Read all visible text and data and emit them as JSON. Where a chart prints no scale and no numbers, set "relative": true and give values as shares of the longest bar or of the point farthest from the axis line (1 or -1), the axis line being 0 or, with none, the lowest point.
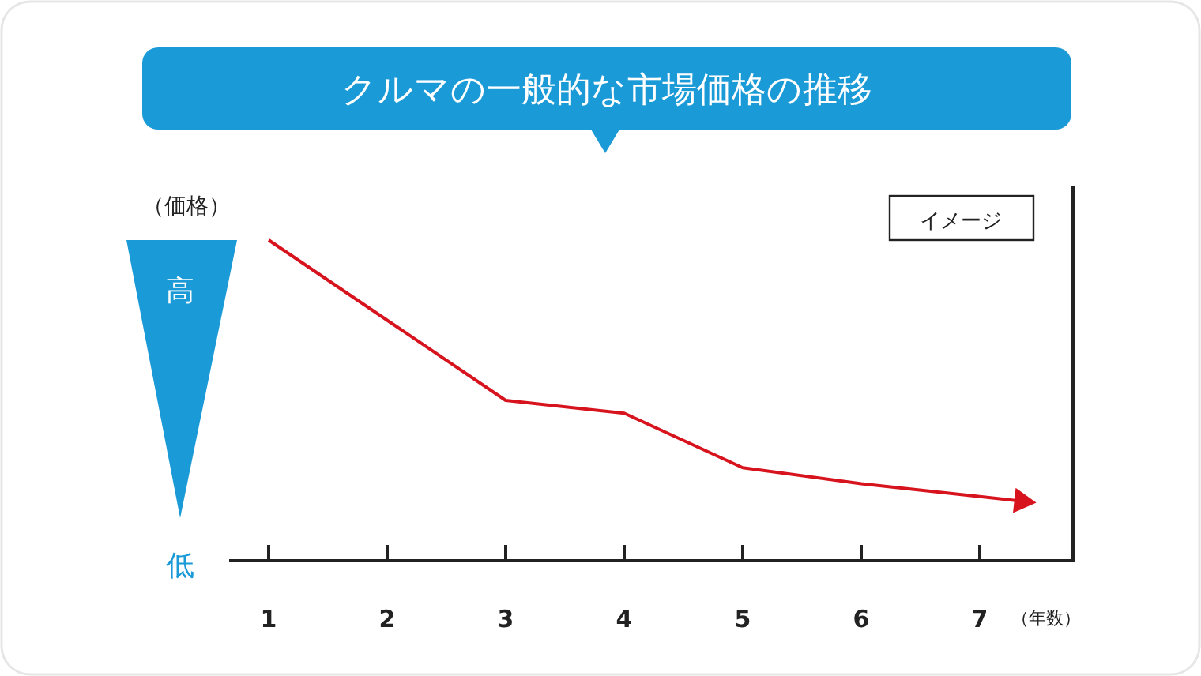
{
  "chart_data": {
    "type": "line",
    "title": "クルマの一般的な市場価格の推移",
    "xlabel": "（年数）",
    "ylabel": "（価格）",
    "categories": [
      "1",
      "2",
      "3",
      "4",
      "5",
      "6",
      "7"
    ],
    "values": [
      1,
      0.75,
      0.5,
      0.46,
      0.29,
      0.24,
      0.2
    ],
    "color": "#d7141e",
    "relative": true,
    "annotations": [
      "高",
      "低",
      "イメージ"
    ]
  }
}
